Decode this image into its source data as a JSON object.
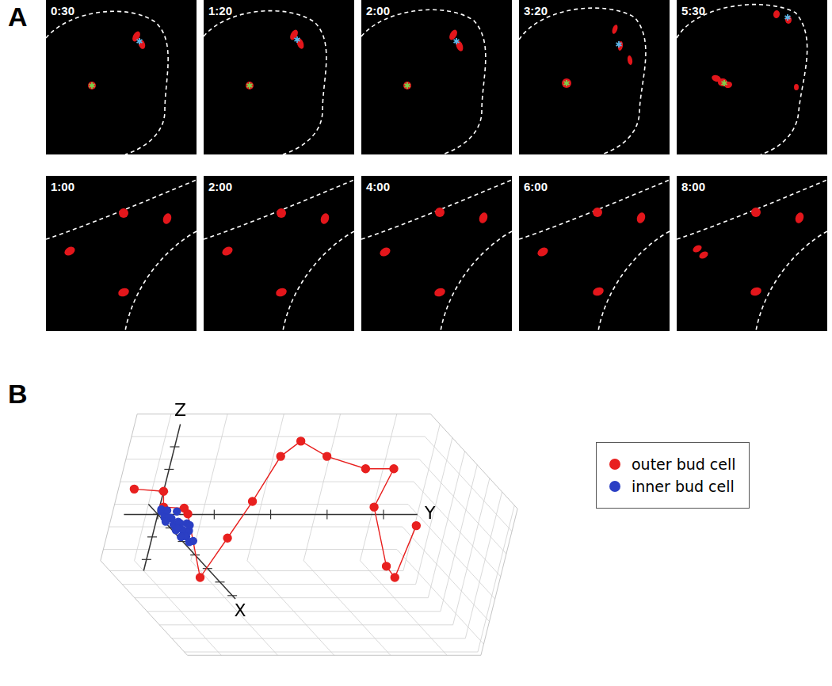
{
  "panel_a": {
    "label": "A",
    "rows": [
      [
        "0:30",
        "1:20",
        "2:00",
        "3:20",
        "5:30"
      ],
      [
        "1:00",
        "2:00",
        "4:00",
        "6:00",
        "8:00"
      ]
    ]
  },
  "chart_data": {
    "panel_label": "B",
    "type": "line",
    "axis_labels": {
      "x": "X",
      "y": "Y",
      "z": "Z"
    },
    "xlim": [
      -3,
      25
    ],
    "ylim": [
      -6,
      46
    ],
    "zlim": [
      -10,
      16
    ],
    "xticks": [
      0,
      4,
      8,
      12,
      16,
      20,
      24
    ],
    "yticks": [
      0,
      10,
      20,
      30,
      40
    ],
    "zticks": [
      -8,
      -4,
      0,
      4,
      8,
      12
    ],
    "grid": true,
    "tick_labels": false,
    "legend": "right",
    "series": [
      {
        "name": "outer bud cell",
        "color": "#e8201f",
        "marker": "circle",
        "line_style": "solid",
        "x": [
          0,
          0,
          0,
          2,
          2,
          15,
          8,
          5,
          2,
          2,
          2,
          2,
          2,
          4,
          10,
          10,
          6
        ],
        "y": [
          -5.3,
          0,
          0.7,
          3.0,
          3.9,
          -0.2,
          7.8,
          12.7,
          17.8,
          20.7,
          26.0,
          33.4,
          38.4,
          35.2,
          35.8,
          37.8,
          42.1
        ],
        "z": [
          4.5,
          4.1,
          1.3,
          2.3,
          1.3,
          -2.2,
          0.6,
          5.3,
          11.5,
          14.2,
          11.5,
          9.3,
          9.3,
          3.7,
          -3.2,
          -5.2,
          1.6
        ]
      },
      {
        "name": "inner bud cell",
        "color": "#2b3fc4",
        "marker": "circle",
        "line_style": "none",
        "x": [
          0.5,
          1,
          1.5,
          2,
          2.5,
          3,
          3.5,
          4,
          4.5,
          5,
          5.5,
          6,
          6.5,
          7,
          7.5,
          8,
          8.5,
          9,
          9.5,
          1.2,
          2.8,
          4.2,
          5.8,
          7.2,
          3.3,
          6.1
        ],
        "y": [
          0.2,
          -0.3,
          0.5,
          0.1,
          -0.4,
          0.3,
          0.8,
          -0.2,
          0.4,
          0.9,
          0.1,
          -0.3,
          0.6,
          0.2,
          1.0,
          0.4,
          -0.1,
          0.5,
          0.8,
          1.1,
          1.3,
          1.2,
          1.5,
          1.1,
          -0.6,
          0.9
        ],
        "z": [
          0.8,
          1.5,
          0.4,
          1.9,
          0.9,
          1.2,
          0.3,
          1.7,
          0.6,
          1.4,
          2.0,
          0.8,
          1.1,
          0.2,
          1.6,
          0.9,
          1.3,
          0.5,
          1.0,
          0.2,
          2.2,
          0.1,
          1.9,
          2.4,
          0.7,
          -0.3
        ]
      }
    ]
  }
}
